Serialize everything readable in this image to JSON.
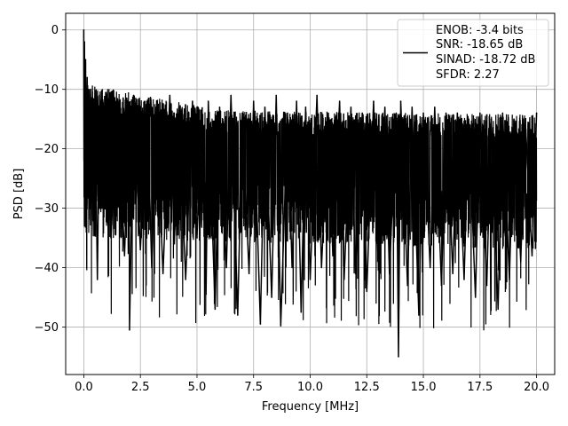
{
  "chart_data": {
    "type": "line",
    "xlabel": "Frequency [MHz]",
    "ylabel": "PSD [dB]",
    "xlim": [
      -0.8,
      20.8
    ],
    "ylim": [
      -58,
      2.8
    ],
    "x_ticks": [
      0.0,
      2.5,
      5.0,
      7.5,
      10.0,
      12.5,
      15.0,
      17.5,
      20.0
    ],
    "x_tick_labels": [
      "0.0",
      "2.5",
      "5.0",
      "7.5",
      "10.0",
      "12.5",
      "15.0",
      "17.5",
      "20.0"
    ],
    "y_ticks": [
      0,
      -10,
      -20,
      -30,
      -40,
      -50
    ],
    "y_tick_labels": [
      "0",
      "−10",
      "−20",
      "−30",
      "−40",
      "−50"
    ],
    "grid": true,
    "legend_position": "top-right",
    "line_color": "#000000",
    "series": [
      {
        "name": "ENOB: -3.4 bits\nSNR: -18.65 dB\nSINAD: -18.72 dB\nSFDR: 2.27",
        "legend_lines": [
          "ENOB: -3.4 bits",
          "SNR: -18.65 dB",
          "SINAD: -18.72 dB",
          "SFDR: 2.27"
        ],
        "x": [
          0.0,
          0.01,
          0.03,
          0.05,
          0.08,
          0.1,
          0.15,
          0.2,
          0.3,
          0.4,
          0.5,
          0.6,
          0.7,
          0.8,
          1.0,
          1.2,
          1.5,
          1.8,
          2.0,
          2.02,
          2.2,
          2.5,
          2.8,
          3.0,
          3.2,
          3.5,
          3.8,
          4.0,
          4.2,
          4.5,
          4.8,
          5.0,
          5.2,
          5.4,
          5.5,
          5.8,
          6.0,
          6.3,
          6.5,
          6.8,
          7.0,
          7.3,
          7.5,
          7.8,
          8.0,
          8.3,
          8.5,
          8.7,
          9.0,
          9.2,
          9.4,
          9.6,
          9.8,
          10.0,
          10.3,
          10.5,
          10.8,
          11.0,
          11.3,
          11.5,
          11.8,
          12.0,
          12.3,
          12.5,
          12.8,
          13.0,
          13.3,
          13.5,
          13.8,
          13.9,
          14.0,
          14.3,
          14.5,
          14.8,
          15.0,
          15.3,
          15.5,
          15.8,
          16.0,
          16.3,
          16.5,
          16.8,
          17.0,
          17.3,
          17.5,
          17.8,
          18.0,
          18.3,
          18.5,
          18.8,
          19.0,
          19.3,
          19.5,
          19.8,
          20.0
        ],
        "y": [
          0.0,
          -22.0,
          -2.0,
          -18.0,
          -5.0,
          -25.0,
          -8.0,
          -28.0,
          -10.0,
          -32.0,
          -12.0,
          -42.0,
          -11.0,
          -30.0,
          -13.0,
          -35.0,
          -12.0,
          -38.0,
          -14.0,
          -50.5,
          -11.0,
          -37.0,
          -12.0,
          -40.0,
          -13.0,
          -41.0,
          -11.0,
          -36.0,
          -13.0,
          -42.0,
          -12.0,
          -35.0,
          -14.0,
          -44.5,
          -12.0,
          -47.0,
          -13.0,
          -40.0,
          -11.0,
          -48.0,
          -14.0,
          -41.0,
          -12.0,
          -49.5,
          -13.0,
          -45.0,
          -11.0,
          -49.8,
          -14.0,
          -40.0,
          -12.0,
          -47.5,
          -13.0,
          -42.0,
          -11.0,
          -40.0,
          -14.0,
          -38.0,
          -12.0,
          -42.0,
          -13.0,
          -41.0,
          -14.0,
          -44.0,
          -12.0,
          -39.0,
          -13.0,
          -41.0,
          -14.0,
          -55.0,
          -12.0,
          -43.0,
          -13.0,
          -48.0,
          -14.0,
          -40.0,
          -13.0,
          -43.0,
          -14.0,
          -41.0,
          -14.0,
          -42.0,
          -15.0,
          -45.0,
          -14.0,
          -43.0,
          -15.0,
          -47.0,
          -14.0,
          -42.0,
          -15.0,
          -39.0,
          -15.0,
          -38.0,
          -14.0
        ]
      }
    ]
  }
}
